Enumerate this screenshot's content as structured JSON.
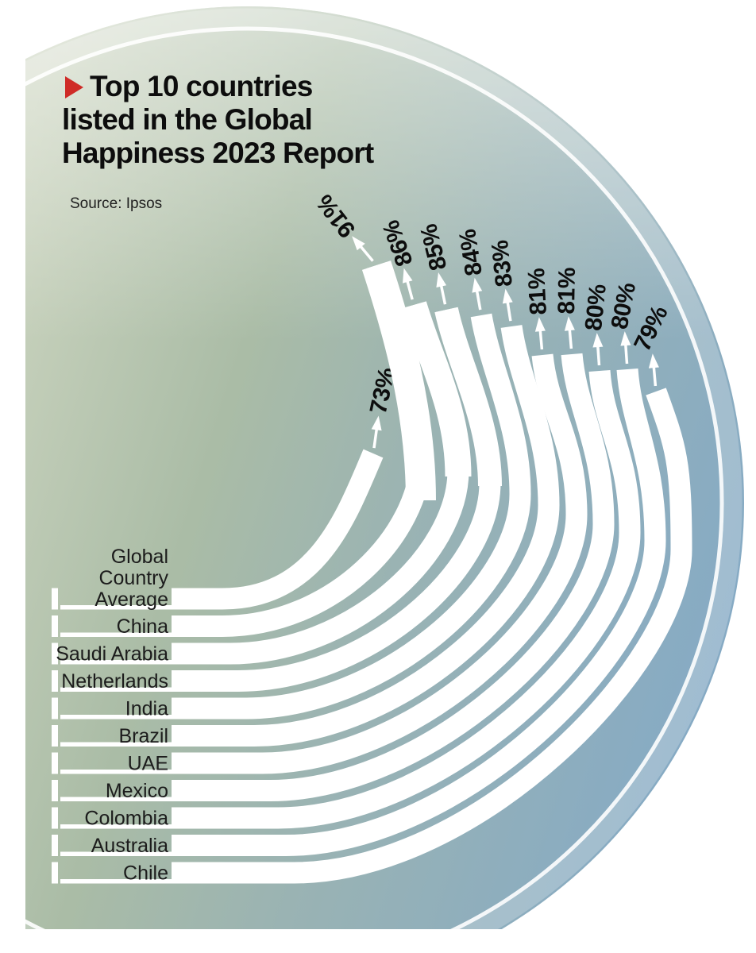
{
  "page_title": "Top 10 countries listed in the Global Happiness 2023 Report",
  "title": {
    "line1": "Top 10 countries",
    "line2": "listed in the Global",
    "line3": "Happiness 2023 Report"
  },
  "source": "Source: Ipsos",
  "chart_data": {
    "type": "radial-bar",
    "title": "Top 10 countries listed in the Global Happiness 2023 Report",
    "source": "Ipsos",
    "unit": "percent",
    "categories": [
      "Global Country Average",
      "China",
      "Saudi Arabia",
      "Netherlands",
      "India",
      "Brazil",
      "UAE",
      "Mexico",
      "Colombia",
      "Australia",
      "Chile"
    ],
    "values": [
      73,
      91,
      86,
      85,
      84,
      83,
      81,
      81,
      80,
      80,
      79
    ],
    "value_labels": [
      "73%",
      "91%",
      "86%",
      "85%",
      "84%",
      "83%",
      "81%",
      "81%",
      "80%",
      "80%",
      "79%"
    ],
    "row0_label_lines": [
      "Global",
      "Country",
      "Average"
    ],
    "legend_position": "none",
    "layout_hint": "bars start as horizontal rows at bottom-left and sweep upward around the circle, each ending with a small arrow and rotated percentage label"
  },
  "colors": {
    "background": "#ffffff",
    "accent_red": "#cf2b27",
    "bar": "#ffffff",
    "text": "#111111",
    "ring": "#ffffff",
    "gradient_left": "#cbd4bf",
    "gradient_mid_green": "#aabca6",
    "gradient_mid_teal": "#9ab3b3",
    "gradient_right": "#85aac5"
  }
}
